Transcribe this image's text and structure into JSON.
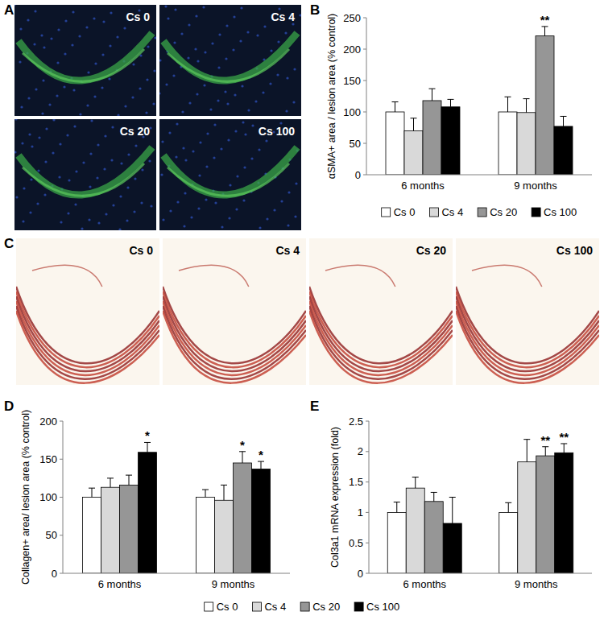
{
  "chart_data": [
    {
      "type": "bar",
      "panel_label": "B",
      "y_label": "αSMA+ area / lesion area (% control)",
      "categories": [
        "6 months",
        "9 months"
      ],
      "ylim": [
        0,
        250
      ],
      "yticks": [
        0,
        50,
        100,
        150,
        200,
        250
      ],
      "grid": false,
      "legend": "bottom",
      "series": [
        {
          "name": "Cs 0",
          "color": "#ffffff",
          "values": [
            100,
            100
          ],
          "errors": [
            16,
            24
          ],
          "significance": [
            null,
            null
          ]
        },
        {
          "name": "Cs 4",
          "color": "#d9d9d9",
          "values": [
            70,
            99
          ],
          "errors": [
            20,
            22
          ],
          "significance": [
            null,
            null
          ]
        },
        {
          "name": "Cs 20",
          "color": "#969696",
          "values": [
            118,
            221
          ],
          "errors": [
            19,
            15
          ],
          "significance": [
            null,
            "**"
          ]
        },
        {
          "name": "Cs 100",
          "color": "#000000",
          "values": [
            108,
            77
          ],
          "errors": [
            12,
            16
          ],
          "significance": [
            null,
            null
          ]
        }
      ]
    },
    {
      "type": "bar",
      "panel_label": "D",
      "y_label": "Collagen+ area/ lesion area (% control)",
      "categories": [
        "6 months",
        "9 months"
      ],
      "ylim": [
        0,
        200
      ],
      "yticks": [
        0,
        50,
        100,
        150,
        200
      ],
      "grid": false,
      "legend": "bottom",
      "series": [
        {
          "name": "Cs 0",
          "color": "#ffffff",
          "values": [
            100,
            100
          ],
          "errors": [
            12,
            10
          ],
          "significance": [
            null,
            null
          ]
        },
        {
          "name": "Cs 4",
          "color": "#d9d9d9",
          "values": [
            113,
            96
          ],
          "errors": [
            12,
            20
          ],
          "significance": [
            null,
            null
          ]
        },
        {
          "name": "Cs 20",
          "color": "#969696",
          "values": [
            116,
            145
          ],
          "errors": [
            13,
            15
          ],
          "significance": [
            null,
            "*"
          ]
        },
        {
          "name": "Cs 100",
          "color": "#000000",
          "values": [
            159,
            137
          ],
          "errors": [
            13,
            10
          ],
          "significance": [
            "*",
            "*"
          ]
        }
      ]
    },
    {
      "type": "bar",
      "panel_label": "E",
      "y_label": "Col3a1 mRNA expression (fold)",
      "categories": [
        "6 months",
        "9 months"
      ],
      "ylim": [
        0,
        2.5
      ],
      "yticks": [
        0,
        0.5,
        1,
        1.5,
        2,
        2.5
      ],
      "grid": false,
      "legend": "bottom",
      "series": [
        {
          "name": "Cs 0",
          "color": "#ffffff",
          "values": [
            1,
            1
          ],
          "errors": [
            0.17,
            0.16
          ],
          "significance": [
            null,
            null
          ]
        },
        {
          "name": "Cs 4",
          "color": "#d9d9d9",
          "values": [
            1.4,
            1.83
          ],
          "errors": [
            0.18,
            0.37
          ],
          "significance": [
            null,
            null
          ]
        },
        {
          "name": "Cs 20",
          "color": "#969696",
          "values": [
            1.18,
            1.93
          ],
          "errors": [
            0.15,
            0.15
          ],
          "significance": [
            null,
            "**"
          ]
        },
        {
          "name": "Cs 100",
          "color": "#000000",
          "values": [
            0.82,
            1.98
          ],
          "errors": [
            0.43,
            0.15
          ],
          "significance": [
            null,
            "**"
          ]
        }
      ]
    }
  ],
  "images": [
    {
      "panel_label": "A",
      "labels": [
        "Cs 0",
        "Cs 4",
        "Cs 20",
        "Cs 100"
      ]
    },
    {
      "panel_label": "C",
      "labels": [
        "Cs 0",
        "Cs 4",
        "Cs 20",
        "Cs 100"
      ]
    }
  ]
}
